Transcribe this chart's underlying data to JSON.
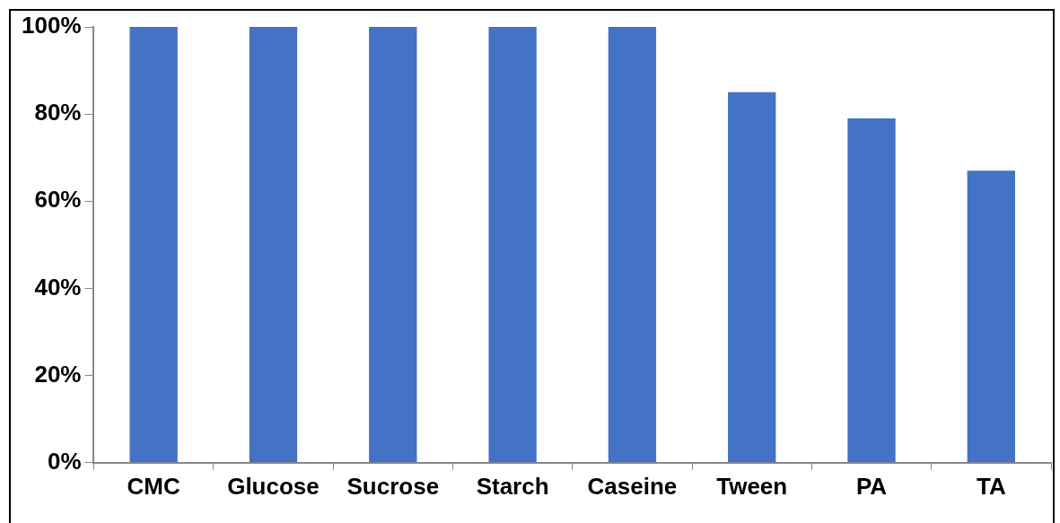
{
  "chart_data": {
    "type": "bar",
    "categories": [
      "CMC",
      "Glucose",
      "Sucrose",
      "Starch",
      "Caseine",
      "Tween",
      "PA",
      "TA"
    ],
    "values": [
      100,
      100,
      100,
      100,
      100,
      85,
      79,
      67
    ],
    "color": "#4472c4",
    "ylim": [
      0,
      100
    ],
    "yticks": [
      {
        "value": 0,
        "label": "0%"
      },
      {
        "value": 20,
        "label": "20%"
      },
      {
        "value": 40,
        "label": "40%"
      },
      {
        "value": 60,
        "label": "60%"
      },
      {
        "value": 80,
        "label": "80%"
      },
      {
        "value": 100,
        "label": "100%"
      }
    ],
    "grid": false,
    "legend": false
  }
}
